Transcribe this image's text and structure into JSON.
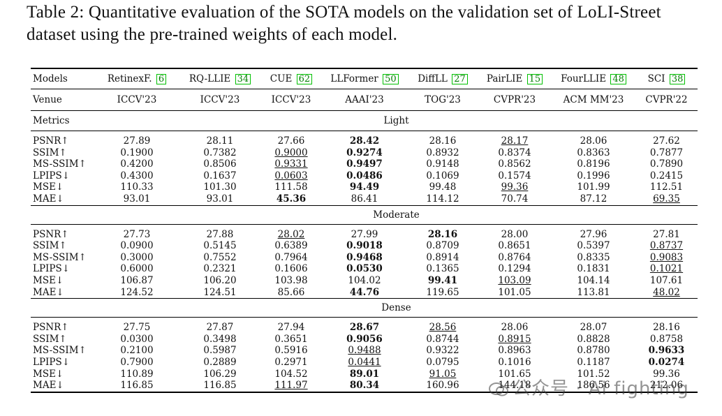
{
  "caption": "Table 2: Quantitative evaluation of the SOTA models on the validation set of LoLI-Street dataset using the pre-trained weights of each model.",
  "header": {
    "models_label": "Models",
    "venue_label": "Venue",
    "metrics_label": "Metrics",
    "models": [
      {
        "name": "RetinexF.",
        "ref": "6",
        "venue": "ICCV'23"
      },
      {
        "name": "RQ-LLIE",
        "ref": "34",
        "venue": "ICCV'23"
      },
      {
        "name": "CUE",
        "ref": "62",
        "venue": "ICCV'23"
      },
      {
        "name": "LLFormer",
        "ref": "50",
        "venue": "AAAI'23"
      },
      {
        "name": "DiffLL",
        "ref": "27",
        "venue": "TOG'23"
      },
      {
        "name": "PairLIE",
        "ref": "15",
        "venue": "CVPR'23"
      },
      {
        "name": "FourLLIE",
        "ref": "48",
        "venue": "ACM MM'23"
      },
      {
        "name": "SCI",
        "ref": "38",
        "venue": "CVPR'22"
      }
    ]
  },
  "sections": [
    {
      "name": "Light",
      "rows": [
        {
          "metric": "PSNR↑",
          "values": [
            "27.89",
            "28.11",
            "27.66",
            "28.42",
            "28.16",
            "28.17",
            "28.06",
            "27.62"
          ],
          "best": 3,
          "second": 5
        },
        {
          "metric": "SSIM↑",
          "values": [
            "0.1900",
            "0.7382",
            "0.9000",
            "0.9274",
            "0.8932",
            "0.8374",
            "0.8363",
            "0.7877"
          ],
          "best": 3,
          "second": 2
        },
        {
          "metric": "MS-SSIM↑",
          "values": [
            "0.4200",
            "0.8506",
            "0.9331",
            "0.9497",
            "0.9148",
            "0.8562",
            "0.8196",
            "0.7890"
          ],
          "best": 3,
          "second": 2
        },
        {
          "metric": "LPIPS↓",
          "values": [
            "0.4300",
            "0.1637",
            "0.0603",
            "0.0486",
            "0.1069",
            "0.1574",
            "0.1996",
            "0.2415"
          ],
          "best": 3,
          "second": 2
        },
        {
          "metric": "MSE↓",
          "values": [
            "110.33",
            "101.30",
            "111.58",
            "94.49",
            "99.48",
            "99.36",
            "101.99",
            "112.51"
          ],
          "best": 3,
          "second": 5
        },
        {
          "metric": "MAE↓",
          "values": [
            "93.01",
            "93.01",
            "45.36",
            "86.41",
            "114.12",
            "70.74",
            "87.12",
            "69.35"
          ],
          "best": 2,
          "second": 7
        }
      ]
    },
    {
      "name": "Moderate",
      "rows": [
        {
          "metric": "PSNR↑",
          "values": [
            "27.73",
            "27.88",
            "28.02",
            "27.99",
            "28.16",
            "28.00",
            "27.96",
            "27.81"
          ],
          "best": 4,
          "second": 2
        },
        {
          "metric": "SSIM↑",
          "values": [
            "0.0900",
            "0.5145",
            "0.6389",
            "0.9018",
            "0.8709",
            "0.8651",
            "0.5397",
            "0.8737"
          ],
          "best": 3,
          "second": 7
        },
        {
          "metric": "MS-SSIM↑",
          "values": [
            "0.3000",
            "0.7552",
            "0.7964",
            "0.9468",
            "0.8914",
            "0.8764",
            "0.8335",
            "0.9083"
          ],
          "best": 3,
          "second": 7
        },
        {
          "metric": "LPIPS↓",
          "values": [
            "0.6000",
            "0.2321",
            "0.1606",
            "0.0530",
            "0.1365",
            "0.1294",
            "0.1831",
            "0.1021"
          ],
          "best": 3,
          "second": 7
        },
        {
          "metric": "MSE↓",
          "values": [
            "106.87",
            "106.20",
            "103.98",
            "104.02",
            "99.41",
            "103.09",
            "104.14",
            "107.61"
          ],
          "best": 4,
          "second": 5
        },
        {
          "metric": "MAE↓",
          "values": [
            "124.52",
            "124.51",
            "85.66",
            "44.76",
            "119.65",
            "101.05",
            "113.81",
            "48.02"
          ],
          "best": 3,
          "second": 7
        }
      ]
    },
    {
      "name": "Dense",
      "rows": [
        {
          "metric": "PSNR↑",
          "values": [
            "27.75",
            "27.87",
            "27.94",
            "28.67",
            "28.56",
            "28.06",
            "28.07",
            "28.16"
          ],
          "best": 3,
          "second": 4
        },
        {
          "metric": "SSIM↑",
          "values": [
            "0.0300",
            "0.3498",
            "0.3651",
            "0.9056",
            "0.8744",
            "0.8915",
            "0.8828",
            "0.8758"
          ],
          "best": 3,
          "second": 5
        },
        {
          "metric": "MS-SSIM↑",
          "values": [
            "0.2100",
            "0.5987",
            "0.5916",
            "0.9488",
            "0.9322",
            "0.8963",
            "0.8780",
            "0.9633"
          ],
          "best": 7,
          "second": 3
        },
        {
          "metric": "LPIPS↓",
          "values": [
            "0.7900",
            "0.2889",
            "0.2971",
            "0.0441",
            "0.0795",
            "0.1016",
            "0.1187",
            "0.0274"
          ],
          "best": 7,
          "second": 3
        },
        {
          "metric": "MSE↓",
          "values": [
            "110.89",
            "106.29",
            "104.52",
            "89.01",
            "91.05",
            "101.65",
            "101.52",
            "99.36"
          ],
          "best": 3,
          "second": 4
        },
        {
          "metric": "MAE↓",
          "values": [
            "116.85",
            "116.85",
            "111.97",
            "80.34",
            "160.96",
            "144.18",
            "186.56",
            "212.06"
          ],
          "best": 3,
          "second": 2
        }
      ]
    }
  ],
  "watermark": {
    "text": "公众号 · Ai fighting"
  }
}
